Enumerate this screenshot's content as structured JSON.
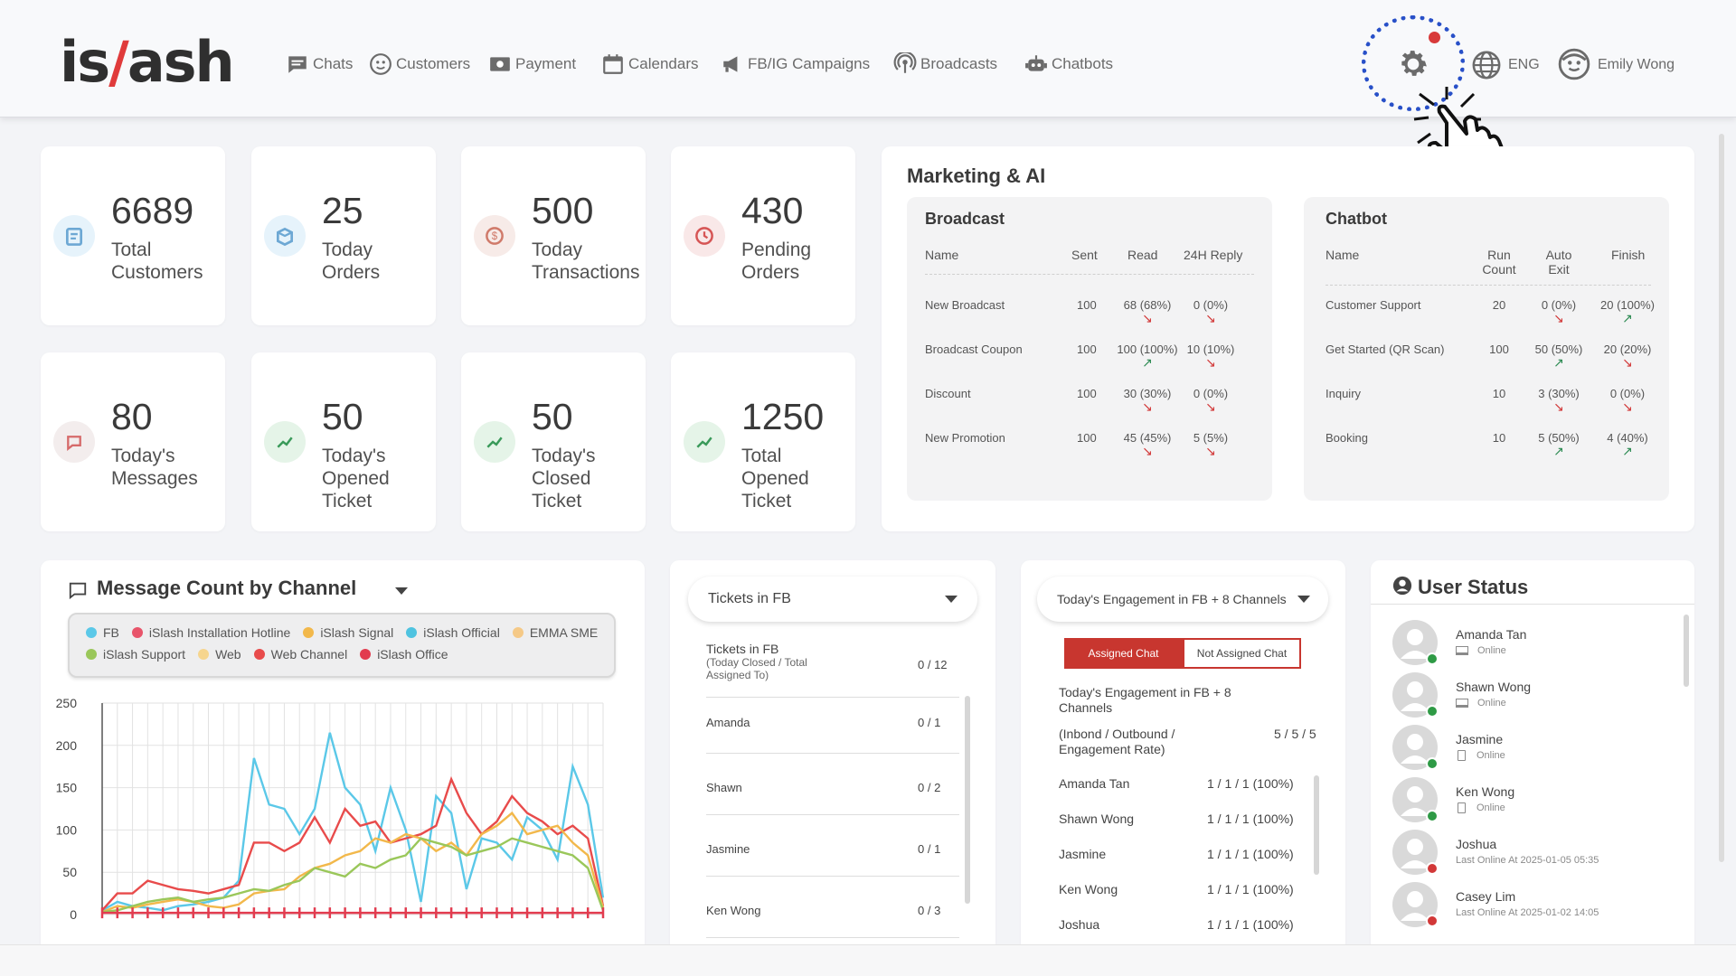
{
  "brand": {
    "pre": "is",
    "slash": "/",
    "post": "ash"
  },
  "nav": [
    {
      "label": "Chats",
      "icon": "chat-icon"
    },
    {
      "label": "Customers",
      "icon": "customers-icon"
    },
    {
      "label": "Payment",
      "icon": "payment-icon"
    },
    {
      "label": "Calendars",
      "icon": "calendar-icon"
    },
    {
      "label": "FB/IG Campaigns",
      "icon": "megaphone-icon"
    },
    {
      "label": "Broadcasts",
      "icon": "broadcast-icon"
    },
    {
      "label": "Chatbots",
      "icon": "robot-icon"
    }
  ],
  "header": {
    "lang": "ENG",
    "user": "Emily Wong"
  },
  "stats": [
    {
      "value": "6689",
      "line1": "Total",
      "line2": "Customers",
      "line3": ""
    },
    {
      "value": "25",
      "line1": "Today",
      "line2": "Orders",
      "line3": ""
    },
    {
      "value": "500",
      "line1": "Today",
      "line2": "Transactions",
      "line3": ""
    },
    {
      "value": "430",
      "line1": "Pending",
      "line2": "Orders",
      "line3": ""
    },
    {
      "value": "80",
      "line1": "Today's",
      "line2": "Messages",
      "line3": ""
    },
    {
      "value": "50",
      "line1": "Today's",
      "line2": "Opened",
      "line3": "Ticket"
    },
    {
      "value": "50",
      "line1": "Today's",
      "line2": "Closed",
      "line3": "Ticket"
    },
    {
      "value": "1250",
      "line1": "Total",
      "line2": "Opened",
      "line3": "Ticket"
    }
  ],
  "marketing": {
    "title": "Marketing & AI",
    "broadcast": {
      "title": "Broadcast",
      "headers": [
        "Name",
        "Sent",
        "Read",
        "24H Reply"
      ],
      "rows": [
        {
          "name": "New Broadcast",
          "sent": "100",
          "read": "68 (68%)",
          "read_trend": "down",
          "reply": "0 (0%)",
          "reply_trend": "down"
        },
        {
          "name": "Broadcast Coupon",
          "sent": "100",
          "read": "100 (100%)",
          "read_trend": "up",
          "reply": "10 (10%)",
          "reply_trend": "down"
        },
        {
          "name": "Discount",
          "sent": "100",
          "read": "30 (30%)",
          "read_trend": "down",
          "reply": "0 (0%)",
          "reply_trend": "down"
        },
        {
          "name": "New Promotion",
          "sent": "100",
          "read": "45 (45%)",
          "read_trend": "down",
          "reply": "5 (5%)",
          "reply_trend": "down"
        }
      ]
    },
    "chatbot": {
      "title": "Chatbot",
      "headers": [
        "Name",
        "Run Count",
        "Auto Exit",
        "Finish"
      ],
      "rows": [
        {
          "name": "Customer Support",
          "run": "20",
          "exit": "0 (0%)",
          "exit_trend": "down",
          "finish": "20 (100%)",
          "finish_trend": "up"
        },
        {
          "name": "Get Started (QR Scan)",
          "run": "100",
          "exit": "50 (50%)",
          "exit_trend": "up",
          "finish": "20 (20%)",
          "finish_trend": "down"
        },
        {
          "name": "Inquiry",
          "run": "10",
          "exit": "3 (30%)",
          "exit_trend": "down",
          "finish": "0 (0%)",
          "finish_trend": "down"
        },
        {
          "name": "Booking",
          "run": "10",
          "exit": "5 (50%)",
          "exit_trend": "up",
          "finish": "4 (40%)",
          "finish_trend": "up"
        }
      ]
    }
  },
  "message_chart": {
    "title": "Message Count by Channel",
    "legend": [
      {
        "name": "FB",
        "color": "#5bc8e8"
      },
      {
        "name": "iSlash Installation Hotline",
        "color": "#e8546a"
      },
      {
        "name": "iSlash Signal",
        "color": "#f2b84b"
      },
      {
        "name": "iSlash Official",
        "color": "#4fc3e0"
      },
      {
        "name": "EMMA SME",
        "color": "#f5c987"
      },
      {
        "name": "iSlash Support",
        "color": "#9ac75a"
      },
      {
        "name": "Web",
        "color": "#f6d58e"
      },
      {
        "name": "Web Channel",
        "color": "#e84b4b"
      },
      {
        "name": "iSlash Office",
        "color": "#e23c4f"
      }
    ]
  },
  "chart_data": {
    "type": "line",
    "title": "",
    "xlabel": "",
    "ylabel": "",
    "ylim": [
      0,
      250
    ],
    "yticks": [
      "250",
      "200",
      "150",
      "100",
      "50",
      "0"
    ],
    "grid": true,
    "series": [
      {
        "name": "FB",
        "color": "#5bc8e8",
        "values": [
          5,
          15,
          10,
          8,
          5,
          10,
          12,
          15,
          20,
          40,
          185,
          130,
          125,
          95,
          125,
          215,
          150,
          130,
          75,
          150,
          100,
          15,
          140,
          120,
          30,
          90,
          85,
          65,
          115,
          100,
          65,
          175,
          130,
          20
        ]
      },
      {
        "name": "Web Channel",
        "color": "#e84b4b",
        "values": [
          5,
          25,
          25,
          40,
          35,
          30,
          28,
          25,
          30,
          35,
          85,
          85,
          75,
          85,
          115,
          85,
          125,
          105,
          110,
          85,
          90,
          95,
          105,
          160,
          120,
          95,
          110,
          140,
          120,
          110,
          95,
          105,
          90,
          10
        ]
      },
      {
        "name": "iSlash Signal",
        "color": "#f2b84b",
        "values": [
          3,
          10,
          8,
          12,
          15,
          18,
          15,
          10,
          8,
          12,
          25,
          28,
          30,
          45,
          55,
          60,
          70,
          75,
          90,
          85,
          95,
          90,
          75,
          85,
          70,
          95,
          105,
          120,
          95,
          100,
          105,
          85,
          70,
          8
        ]
      },
      {
        "name": "iSlash Support",
        "color": "#9ac75a",
        "values": [
          3,
          5,
          10,
          15,
          18,
          20,
          15,
          18,
          20,
          25,
          30,
          28,
          35,
          40,
          55,
          50,
          45,
          60,
          55,
          65,
          70,
          90,
          85,
          80,
          70,
          75,
          80,
          90,
          85,
          80,
          75,
          70,
          55,
          5
        ]
      },
      {
        "name": "iSlash Office",
        "color": "#e23c4f",
        "values": [
          2,
          2,
          2,
          2,
          2,
          2,
          2,
          2,
          2,
          2,
          2,
          2,
          2,
          2,
          2,
          2,
          2,
          2,
          2,
          2,
          2,
          2,
          2,
          2,
          2,
          2,
          2,
          2,
          2,
          2,
          2,
          2,
          2,
          2
        ]
      }
    ]
  },
  "tickets": {
    "dropdown": "Tickets in FB",
    "header_title": "Tickets in FB",
    "header_sub": "(Today Closed / Total Assigned To)",
    "header_value": "0 / 12",
    "rows": [
      {
        "name": "Amanda",
        "value": "0 / 1"
      },
      {
        "name": "Shawn",
        "value": "0 / 2"
      },
      {
        "name": "Jasmine",
        "value": "0 / 1"
      },
      {
        "name": "Ken Wong",
        "value": "0 / 3"
      }
    ]
  },
  "engagement": {
    "dropdown": "Today's Engagement in FB + 8 Channels",
    "tab_active": "Assigned Chat",
    "tab_inactive": "Not Assigned Chat",
    "title": "Today's Engagement in FB + 8 Channels",
    "sub": "(Inbond / Outbound / Engagement Rate)",
    "total": "5 / 5 / 5",
    "rows": [
      {
        "name": "Amanda Tan",
        "value": "1 / 1 / 1 (100%)"
      },
      {
        "name": "Shawn Wong",
        "value": "1 / 1 / 1 (100%)"
      },
      {
        "name": "Jasmine",
        "value": "1 / 1 / 1 (100%)"
      },
      {
        "name": "Ken Wong",
        "value": "1 / 1 / 1 (100%)"
      },
      {
        "name": "Joshua",
        "value": "1 / 1 / 1 (100%)"
      }
    ]
  },
  "user_status": {
    "title": "User Status",
    "users": [
      {
        "name": "Amanda Tan",
        "status": "Online",
        "device": "desktop",
        "online": true
      },
      {
        "name": "Shawn Wong",
        "status": "Online",
        "device": "desktop",
        "online": true
      },
      {
        "name": "Jasmine",
        "status": "Online",
        "device": "mobile",
        "online": true
      },
      {
        "name": "Ken Wong",
        "status": "Online",
        "device": "mobile",
        "online": true
      },
      {
        "name": "Joshua",
        "status": "Last Online At 2025-01-05  05:35",
        "device": "",
        "online": false
      },
      {
        "name": "Casey Lim",
        "status": "Last Online At 2025-01-02  14:05",
        "device": "",
        "online": false
      }
    ]
  }
}
